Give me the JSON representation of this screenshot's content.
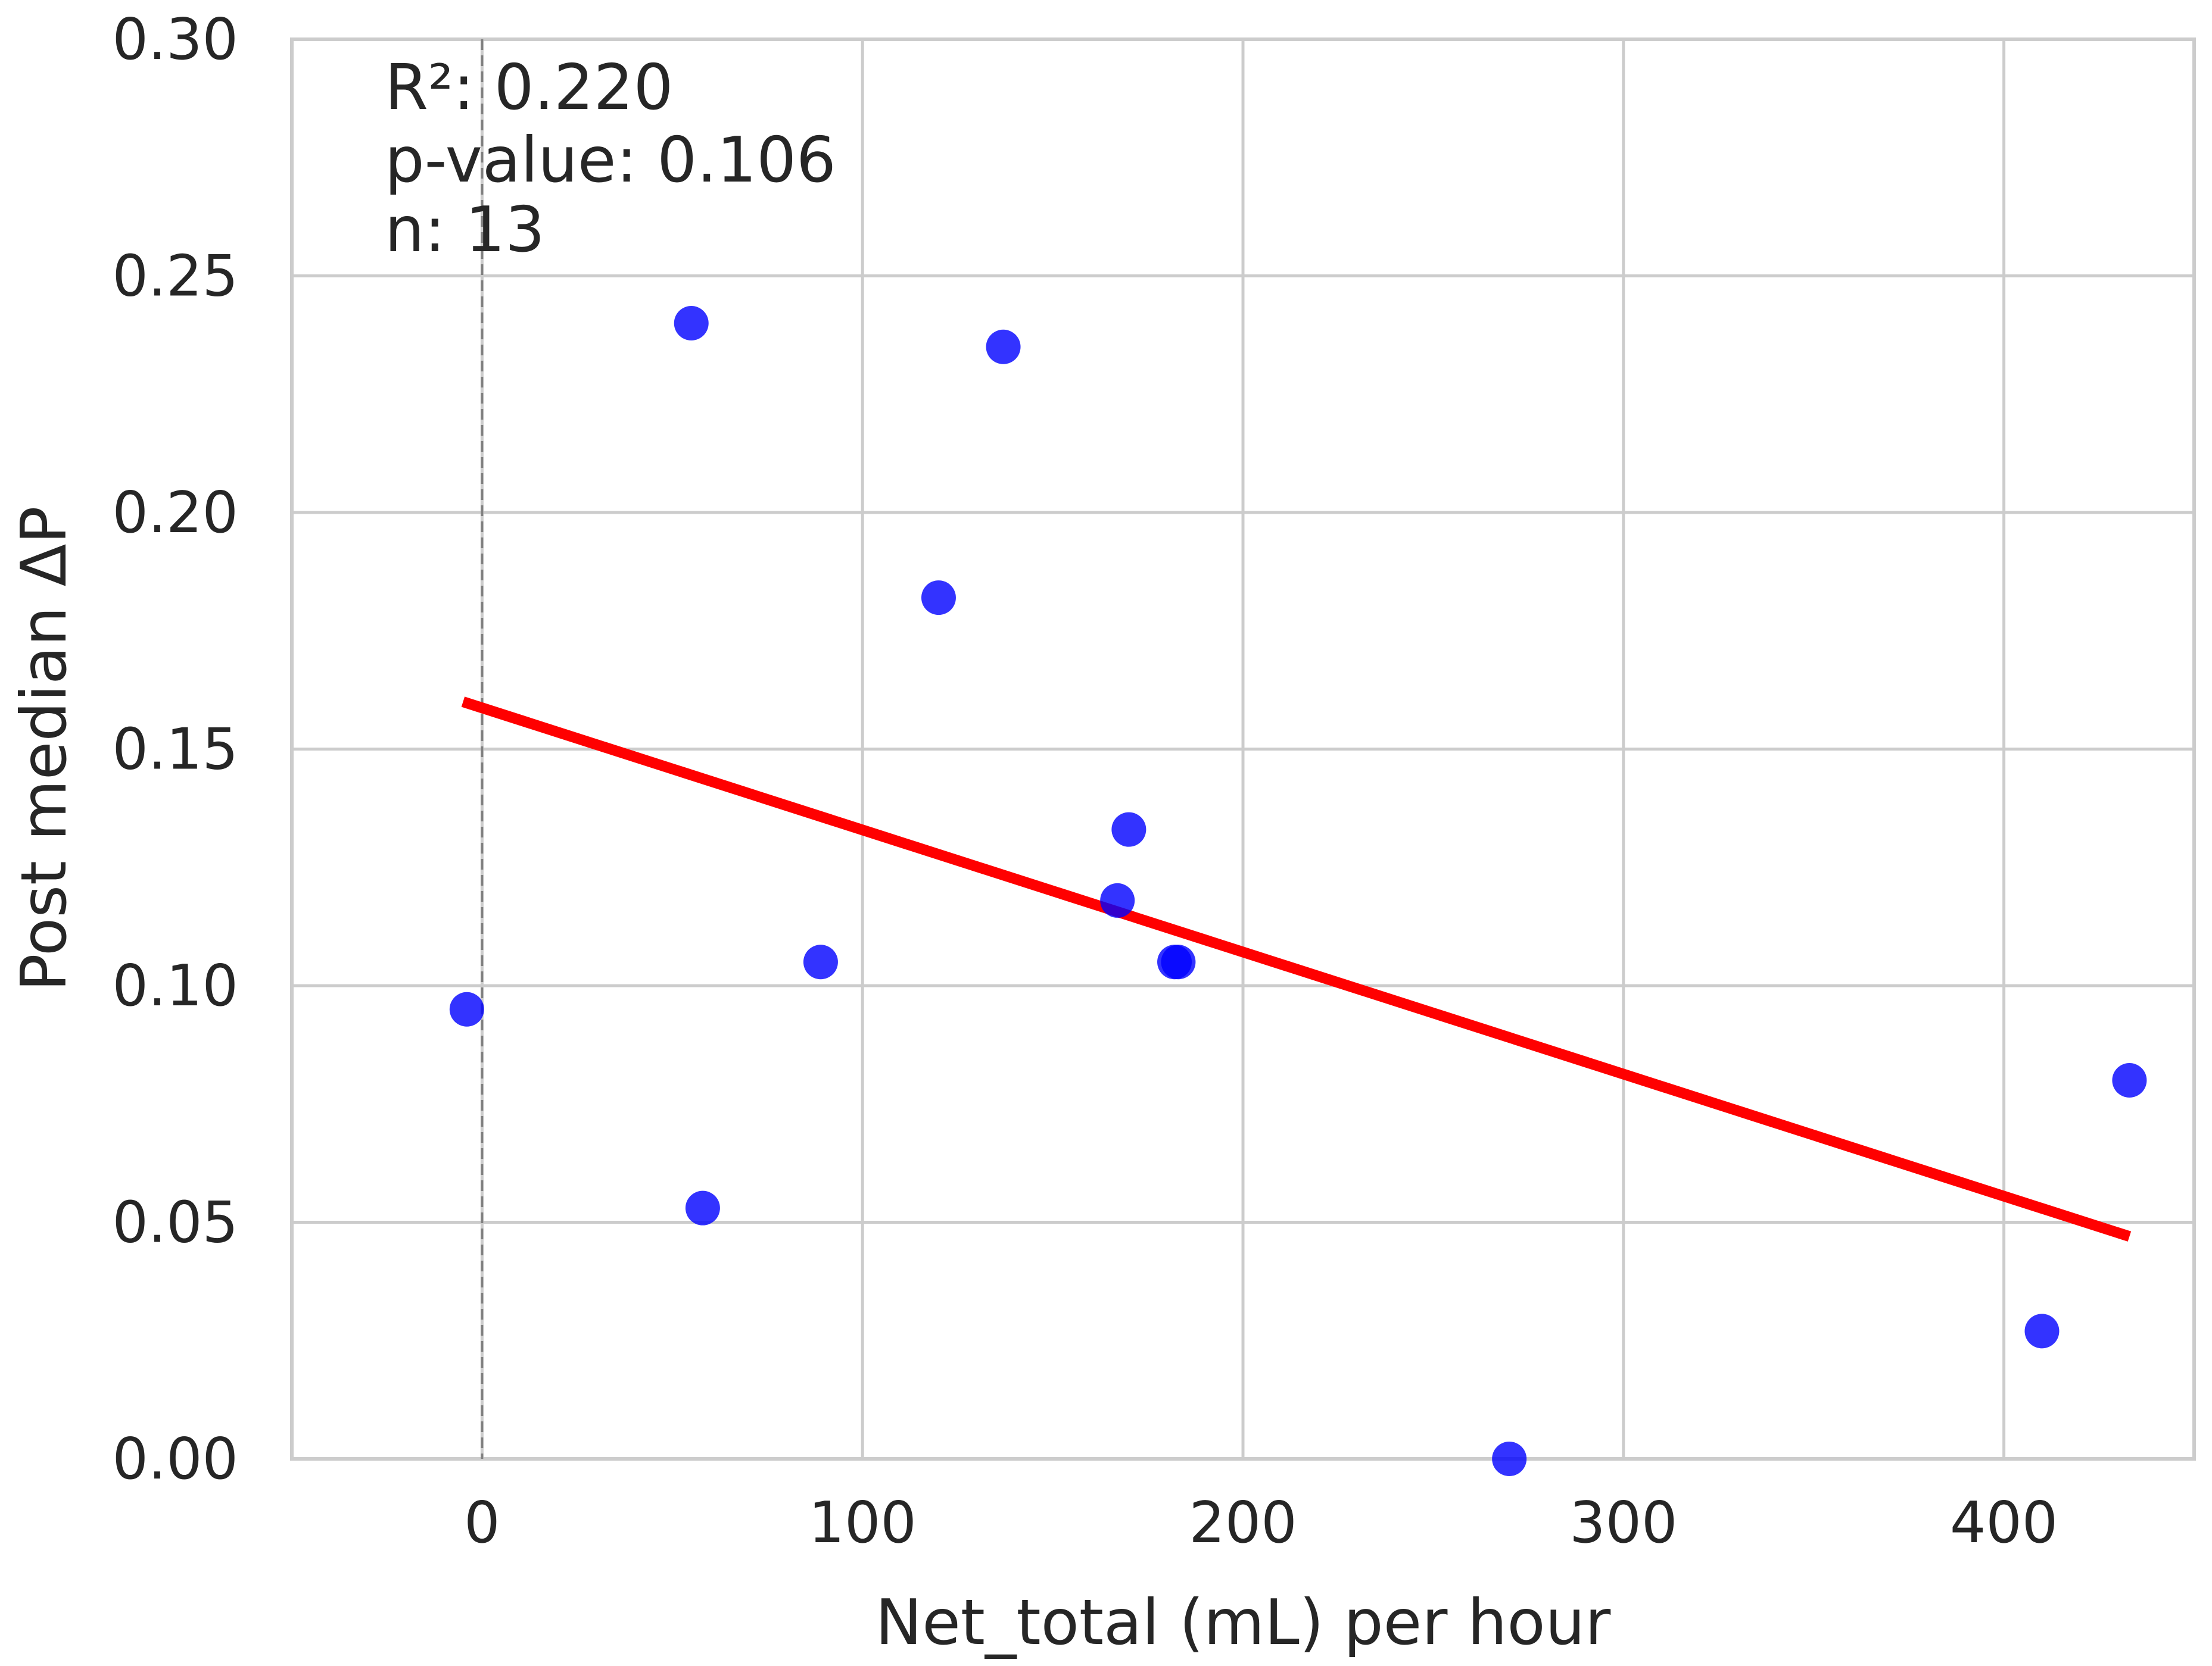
{
  "chart_data": {
    "type": "scatter",
    "xlabel": "Net_total (mL) per hour",
    "ylabel": "Post median ΔP",
    "xlim": [
      -50,
      450
    ],
    "ylim": [
      0.0,
      0.3
    ],
    "x_ticks": [
      0,
      100,
      200,
      300,
      400
    ],
    "x_tick_labels": [
      "0",
      "100",
      "200",
      "300",
      "400"
    ],
    "y_ticks": [
      0.0,
      0.05,
      0.1,
      0.15,
      0.2,
      0.25,
      0.3
    ],
    "y_tick_labels": [
      "0.00",
      "0.05",
      "0.10",
      "0.15",
      "0.20",
      "0.25",
      "0.30"
    ],
    "grid": true,
    "points": [
      {
        "x": -4,
        "y": 0.095
      },
      {
        "x": 55,
        "y": 0.24
      },
      {
        "x": 58,
        "y": 0.053
      },
      {
        "x": 89,
        "y": 0.105
      },
      {
        "x": 120,
        "y": 0.182
      },
      {
        "x": 137,
        "y": 0.235
      },
      {
        "x": 167,
        "y": 0.118
      },
      {
        "x": 170,
        "y": 0.133
      },
      {
        "x": 182,
        "y": 0.105
      },
      {
        "x": 183,
        "y": 0.105
      },
      {
        "x": 270,
        "y": 0.0
      },
      {
        "x": 410,
        "y": 0.027
      },
      {
        "x": 433,
        "y": 0.08
      }
    ],
    "regression_line": {
      "x": [
        -5,
        433
      ],
      "y": [
        0.16,
        0.047
      ]
    },
    "reference_vline": {
      "x": 0
    },
    "annotation_lines": [
      "R²: 0.220",
      "p-value: 0.106",
      "n: 13"
    ],
    "colors": {
      "points": "#0000ff",
      "regression": "#ff0000",
      "reference": "#808080",
      "grid": "#cccccc",
      "text": "#262626"
    }
  }
}
